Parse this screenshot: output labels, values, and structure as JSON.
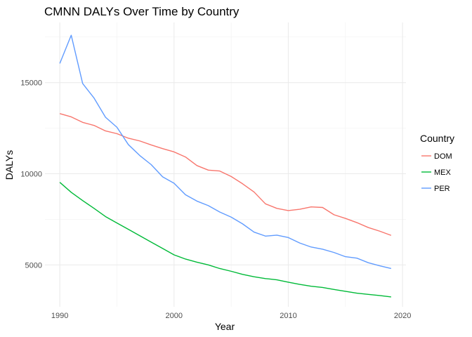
{
  "chart_data": {
    "type": "line",
    "title": "CMNN DALYs Over Time by Country",
    "xlabel": "Year",
    "ylabel": "DALYs",
    "xlim": [
      1988.7,
      2020.3
    ],
    "ylim": [
      2700,
      18300
    ],
    "x_ticks": [
      1990,
      2000,
      2010,
      2020
    ],
    "y_ticks": [
      5000,
      10000,
      15000
    ],
    "x_minor": [
      1995,
      2005,
      2015
    ],
    "y_minor": [
      7500,
      12500,
      17500
    ],
    "grid": true,
    "legend_position": "right",
    "legend_title": "Country",
    "x": [
      1990,
      1991,
      1992,
      1993,
      1994,
      1995,
      1996,
      1997,
      1998,
      1999,
      2000,
      2001,
      2002,
      2003,
      2004,
      2005,
      2006,
      2007,
      2008,
      2009,
      2010,
      2011,
      2012,
      2013,
      2014,
      2015,
      2016,
      2017,
      2018,
      2019
    ],
    "series": [
      {
        "name": "DOM",
        "color": "#F8766D",
        "values": [
          13300,
          13120,
          12820,
          12650,
          12350,
          12200,
          11950,
          11800,
          11580,
          11380,
          11200,
          10920,
          10450,
          10200,
          10150,
          9850,
          9450,
          9000,
          8350,
          8100,
          7980,
          8050,
          8180,
          8150,
          7750,
          7550,
          7320,
          7050,
          6850,
          6620
        ]
      },
      {
        "name": "MEX",
        "color": "#00BA38",
        "values": [
          9530,
          8980,
          8530,
          8100,
          7650,
          7300,
          6950,
          6600,
          6250,
          5900,
          5550,
          5320,
          5150,
          5000,
          4800,
          4650,
          4480,
          4350,
          4250,
          4180,
          4050,
          3930,
          3830,
          3760,
          3650,
          3550,
          3450,
          3380,
          3320,
          3240
        ]
      },
      {
        "name": "PER",
        "color": "#619CFF",
        "values": [
          16050,
          17600,
          14950,
          14150,
          13100,
          12550,
          11600,
          11000,
          10500,
          9830,
          9480,
          8850,
          8500,
          8250,
          7900,
          7620,
          7250,
          6800,
          6580,
          6630,
          6500,
          6200,
          5980,
          5860,
          5680,
          5450,
          5370,
          5120,
          4950,
          4800
        ]
      }
    ]
  }
}
